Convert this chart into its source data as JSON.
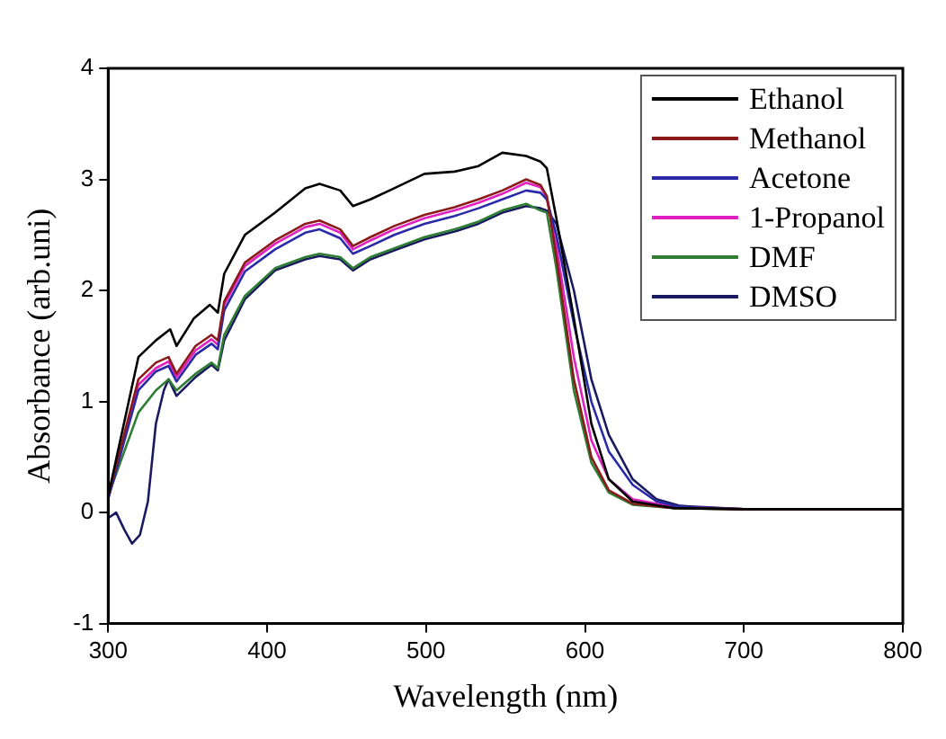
{
  "chart_data": {
    "type": "line",
    "xlabel": "Wavelength (nm)",
    "ylabel": "Absorbance (arb.uni)",
    "xlim": [
      300,
      800
    ],
    "xticks": [
      300,
      400,
      500,
      600,
      700,
      800
    ],
    "ylim": [
      -1,
      4
    ],
    "yticks": [
      -1,
      0,
      1,
      2,
      3,
      4
    ],
    "grid": false,
    "legend": "top right",
    "marker": "none",
    "line_style": "solid",
    "series": [
      {
        "name": "Ethanol",
        "color": "#000000",
        "x": [
          300,
          319,
          330,
          339,
          343,
          354,
          364,
          369,
          373,
          386,
          405,
          424,
          433,
          446,
          454,
          465,
          480,
          499,
          518,
          533,
          548,
          563,
          572,
          576,
          582,
          593,
          604,
          615,
          630,
          656,
          700,
          800
        ],
        "values": [
          0.15,
          1.4,
          1.55,
          1.65,
          1.5,
          1.75,
          1.87,
          1.8,
          2.15,
          2.5,
          2.7,
          2.92,
          2.96,
          2.9,
          2.76,
          2.82,
          2.92,
          3.05,
          3.07,
          3.12,
          3.24,
          3.21,
          3.16,
          3.1,
          2.65,
          1.75,
          0.8,
          0.3,
          0.1,
          0.04,
          0.03,
          0.03
        ]
      },
      {
        "name": "Methanol",
        "color": "#8b1a1a",
        "x": [
          300,
          319,
          330,
          338,
          343,
          355,
          365,
          369,
          373,
          386,
          405,
          424,
          433,
          446,
          454,
          465,
          480,
          499,
          518,
          533,
          548,
          563,
          572,
          576,
          582,
          593,
          604,
          615,
          630,
          656,
          700,
          800
        ],
        "values": [
          0.15,
          1.2,
          1.35,
          1.4,
          1.25,
          1.5,
          1.6,
          1.55,
          1.9,
          2.25,
          2.45,
          2.6,
          2.63,
          2.55,
          2.4,
          2.48,
          2.58,
          2.68,
          2.75,
          2.82,
          2.9,
          3.0,
          2.95,
          2.85,
          2.3,
          1.2,
          0.5,
          0.2,
          0.08,
          0.04,
          0.03,
          0.03
        ]
      },
      {
        "name": "Acetone",
        "color": "#2a2aa8",
        "x": [
          300,
          319,
          330,
          338,
          343,
          355,
          365,
          369,
          373,
          386,
          405,
          424,
          433,
          446,
          454,
          465,
          480,
          499,
          518,
          533,
          548,
          563,
          572,
          576,
          582,
          593,
          604,
          615,
          630,
          645,
          660,
          700,
          800
        ],
        "values": [
          0.12,
          1.1,
          1.27,
          1.32,
          1.18,
          1.42,
          1.52,
          1.47,
          1.82,
          2.17,
          2.37,
          2.52,
          2.55,
          2.47,
          2.33,
          2.4,
          2.5,
          2.6,
          2.67,
          2.74,
          2.82,
          2.9,
          2.88,
          2.82,
          2.5,
          1.7,
          1.0,
          0.55,
          0.25,
          0.1,
          0.05,
          0.03,
          0.03
        ]
      },
      {
        "name": "1-Propanol",
        "color": "#e020c0",
        "x": [
          300,
          319,
          330,
          338,
          343,
          355,
          365,
          369,
          373,
          386,
          405,
          424,
          433,
          446,
          454,
          465,
          480,
          499,
          518,
          533,
          548,
          563,
          572,
          576,
          582,
          593,
          604,
          615,
          630,
          656,
          700,
          800
        ],
        "values": [
          0.13,
          1.15,
          1.3,
          1.36,
          1.22,
          1.46,
          1.56,
          1.51,
          1.87,
          2.22,
          2.42,
          2.57,
          2.6,
          2.52,
          2.37,
          2.45,
          2.55,
          2.65,
          2.72,
          2.79,
          2.87,
          2.97,
          2.93,
          2.84,
          2.4,
          1.4,
          0.65,
          0.3,
          0.12,
          0.05,
          0.03,
          0.03
        ]
      },
      {
        "name": "DMF",
        "color": "#2e7d32",
        "x": [
          300,
          319,
          330,
          338,
          343,
          355,
          365,
          369,
          373,
          386,
          405,
          424,
          433,
          446,
          454,
          465,
          480,
          499,
          518,
          533,
          548,
          563,
          572,
          576,
          582,
          593,
          604,
          615,
          630,
          656,
          700,
          800
        ],
        "values": [
          0.15,
          0.9,
          1.1,
          1.2,
          1.1,
          1.25,
          1.35,
          1.3,
          1.6,
          1.95,
          2.2,
          2.3,
          2.33,
          2.3,
          2.2,
          2.3,
          2.38,
          2.48,
          2.55,
          2.62,
          2.72,
          2.78,
          2.72,
          2.7,
          2.2,
          1.1,
          0.45,
          0.18,
          0.07,
          0.04,
          0.03,
          0.03
        ]
      },
      {
        "name": "DMSO",
        "color": "#1a1a60",
        "x": [
          300,
          305,
          310,
          315,
          320,
          325,
          330,
          335,
          338,
          343,
          355,
          365,
          369,
          373,
          386,
          405,
          424,
          433,
          446,
          454,
          465,
          480,
          499,
          518,
          533,
          548,
          563,
          572,
          576,
          582,
          593,
          604,
          615,
          630,
          645,
          660,
          700,
          800
        ],
        "values": [
          -0.05,
          0.0,
          -0.15,
          -0.28,
          -0.2,
          0.1,
          0.8,
          1.1,
          1.2,
          1.05,
          1.22,
          1.33,
          1.28,
          1.55,
          1.92,
          2.18,
          2.28,
          2.31,
          2.28,
          2.18,
          2.28,
          2.36,
          2.46,
          2.53,
          2.6,
          2.7,
          2.76,
          2.74,
          2.72,
          2.6,
          2.0,
          1.2,
          0.7,
          0.3,
          0.12,
          0.06,
          0.03,
          0.03
        ]
      }
    ]
  }
}
